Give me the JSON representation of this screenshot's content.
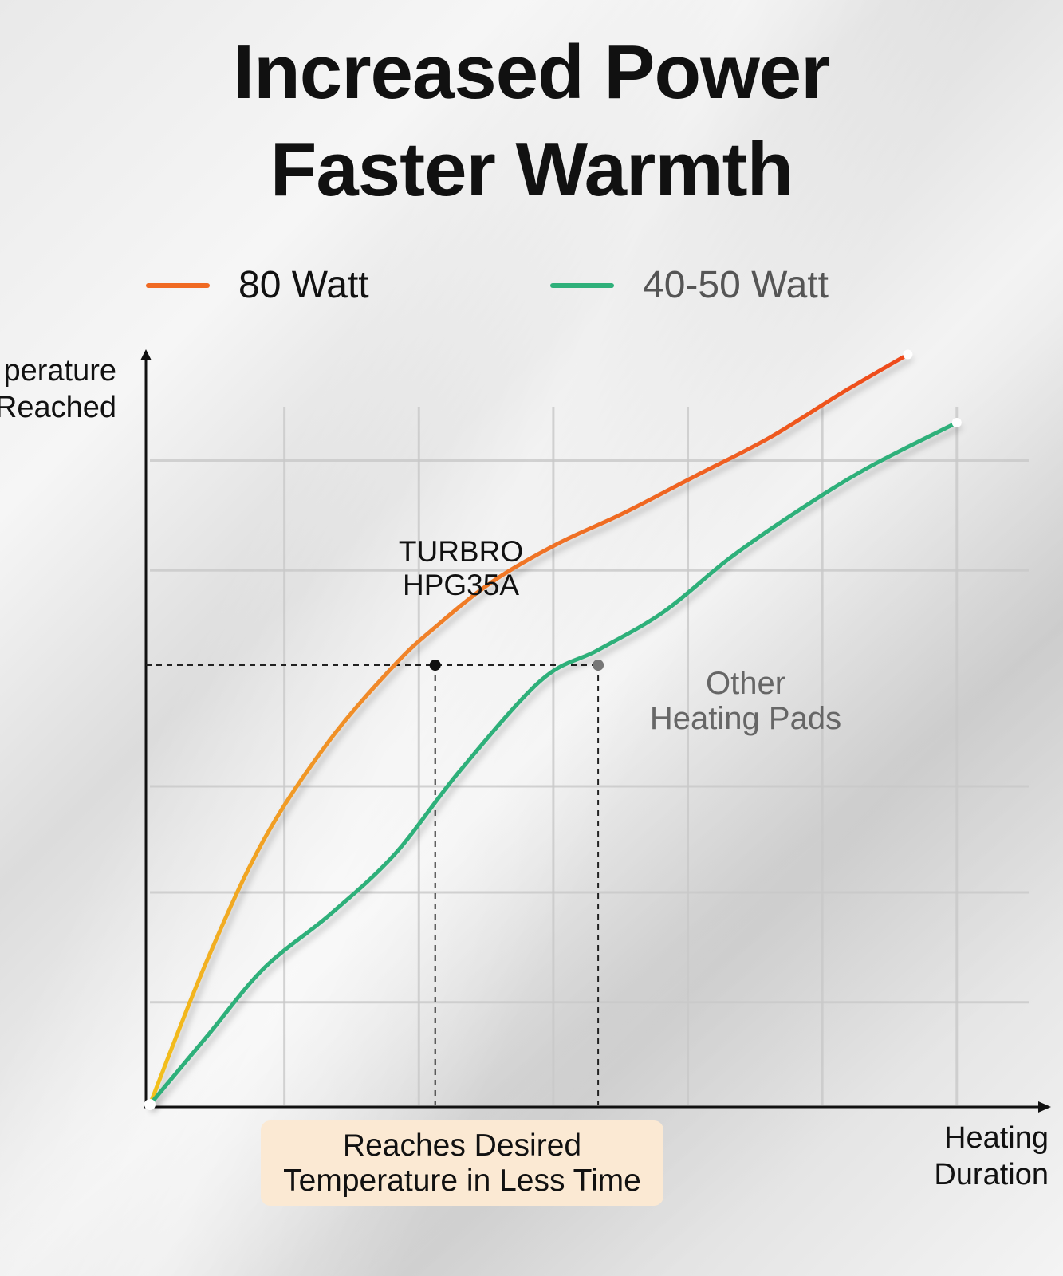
{
  "title_lines": [
    "Increased Power",
    "Faster Warmth"
  ],
  "legend": [
    {
      "label": "80 Watt",
      "color": "#f06a23",
      "text_color": "#111111"
    },
    {
      "label": "40-50 Watt",
      "color": "#2fb07a",
      "text_color": "#555555"
    }
  ],
  "y_axis_label": [
    "perature",
    "Reached"
  ],
  "x_axis_label": [
    "Heating",
    "Duration"
  ],
  "note": [
    "Reaches Desired",
    "Temperature in Less Time"
  ],
  "annotations": {
    "turbro": [
      "TURBRO",
      "HPG35A"
    ],
    "other": [
      "Other",
      "Heating Pads"
    ]
  },
  "chart_data": {
    "type": "line",
    "title": "Increased Power Faster Warmth",
    "xlabel": "Heating Duration",
    "ylabel": "Temperature Reached",
    "xlim": [
      0,
      100
    ],
    "ylim": [
      0,
      100
    ],
    "grid": true,
    "legend_position": "top",
    "series": [
      {
        "name": "80 Watt",
        "x": [
          0,
          7,
          14,
          22,
          30,
          35,
          42,
          50,
          58,
          67,
          76,
          85,
          93
        ],
        "y": [
          0,
          19,
          35,
          48,
          58,
          63,
          69,
          74,
          78,
          83,
          88,
          94,
          99
        ]
      },
      {
        "name": "40-50 Watt",
        "x": [
          0,
          7,
          14,
          22,
          30,
          38,
          48,
          55,
          63,
          71,
          79,
          88,
          99
        ],
        "y": [
          0,
          9,
          18,
          25,
          33,
          44,
          56,
          60,
          65,
          72,
          78,
          84,
          90
        ]
      }
    ],
    "reference_lines": {
      "y": 58,
      "x": [
        35,
        55
      ]
    }
  }
}
